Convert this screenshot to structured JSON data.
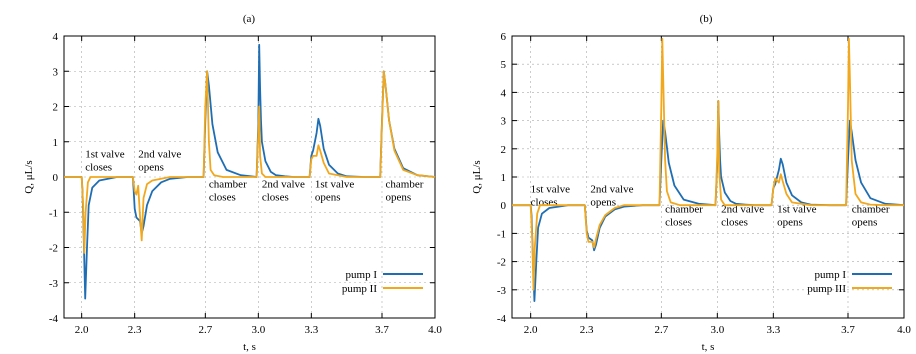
{
  "chart_data": [
    {
      "type": "line",
      "title": "(a)",
      "xlabel": "t, s",
      "ylabel": "Q, μL/s",
      "xlim": [
        1.9,
        4.0
      ],
      "ylim": [
        -4,
        4
      ],
      "xticks": [
        2.0,
        2.3,
        2.7,
        3.0,
        3.3,
        3.7,
        4.0
      ],
      "xtick_labels": [
        "2.0",
        "2.3",
        "2.7",
        "3.0",
        "3.3",
        "3.7",
        "4.0"
      ],
      "yticks": [
        -4,
        -3,
        -2,
        -1,
        0,
        1,
        2,
        3,
        4
      ],
      "ytick_labels": [
        "-4",
        "-3",
        "-2",
        "-1",
        "0",
        "1",
        "2",
        "3",
        "4"
      ],
      "grid": true,
      "legend_position": "bottom-right",
      "annotations": [
        {
          "lines": [
            "1st valve",
            "closes"
          ],
          "x": 2.02,
          "y": 0.55
        },
        {
          "lines": [
            "2nd valve",
            "opens"
          ],
          "x": 2.32,
          "y": 0.55
        },
        {
          "lines": [
            "chamber",
            "closes"
          ],
          "x": 2.72,
          "y": -0.3
        },
        {
          "lines": [
            "2nd valve",
            "closes"
          ],
          "x": 3.02,
          "y": -0.3
        },
        {
          "lines": [
            "1st valve",
            "opens"
          ],
          "x": 3.32,
          "y": -0.3
        },
        {
          "lines": [
            "chamber",
            "opens"
          ],
          "x": 3.72,
          "y": -0.3
        }
      ],
      "series": [
        {
          "name": "pump I",
          "color": "#1f6eb4",
          "x": [
            1.9,
            2.0,
            2.005,
            2.012,
            2.02,
            2.03,
            2.04,
            2.06,
            2.1,
            2.2,
            2.29,
            2.3,
            2.31,
            2.33,
            2.34,
            2.35,
            2.37,
            2.4,
            2.45,
            2.5,
            2.6,
            2.69,
            2.7,
            2.71,
            2.72,
            2.74,
            2.77,
            2.82,
            2.9,
            2.99,
            3.0,
            3.005,
            3.01,
            3.015,
            3.02,
            3.04,
            3.07,
            3.1,
            3.15,
            3.2,
            3.29,
            3.3,
            3.31,
            3.33,
            3.34,
            3.35,
            3.37,
            3.4,
            3.45,
            3.5,
            3.6,
            3.69,
            3.7,
            3.71,
            3.72,
            3.74,
            3.77,
            3.82,
            3.9,
            4.0
          ],
          "values": [
            0,
            0,
            -0.4,
            -1.8,
            -3.45,
            -2.0,
            -0.8,
            -0.3,
            -0.1,
            0,
            0,
            -0.9,
            -1.15,
            -1.25,
            -1.6,
            -1.4,
            -0.8,
            -0.4,
            -0.15,
            -0.05,
            0,
            0,
            1.6,
            3.0,
            2.6,
            1.5,
            0.7,
            0.2,
            0.05,
            0,
            1.5,
            3.75,
            2.5,
            1.6,
            1.0,
            0.45,
            0.15,
            0.05,
            0.02,
            0,
            0,
            0.6,
            0.75,
            1.25,
            1.65,
            1.45,
            0.8,
            0.35,
            0.1,
            0.02,
            0,
            0,
            1.6,
            3.0,
            2.6,
            1.6,
            0.8,
            0.25,
            0.05,
            0
          ]
        },
        {
          "name": "pump II",
          "color": "#f2a81d",
          "x": [
            1.9,
            2.0,
            2.008,
            2.015,
            2.022,
            2.035,
            2.05,
            2.1,
            2.2,
            2.29,
            2.3,
            2.31,
            2.32,
            2.33,
            2.34,
            2.35,
            2.37,
            2.4,
            2.5,
            2.69,
            2.7,
            2.71,
            2.72,
            2.73,
            2.75,
            2.8,
            2.9,
            2.99,
            3.0,
            3.005,
            3.01,
            3.02,
            3.04,
            3.1,
            3.29,
            3.3,
            3.31,
            3.33,
            3.34,
            3.35,
            3.37,
            3.4,
            3.5,
            3.69,
            3.7,
            3.71,
            3.72,
            3.74,
            3.77,
            3.82,
            3.9,
            4.0
          ],
          "values": [
            0,
            0,
            -0.8,
            -2.15,
            -1.0,
            -0.15,
            0,
            0,
            0,
            0,
            -0.4,
            -0.5,
            -0.25,
            -1.1,
            -1.8,
            -0.6,
            -0.2,
            -0.1,
            0,
            0,
            2.0,
            3.0,
            1.0,
            0.2,
            0.05,
            0,
            0,
            0,
            1.2,
            2.0,
            0.6,
            0.1,
            0,
            0,
            0,
            0.5,
            0.6,
            0.6,
            0.9,
            0.75,
            0.4,
            0.1,
            0,
            0,
            1.5,
            3.0,
            2.6,
            1.6,
            0.75,
            0.2,
            0.05,
            0
          ]
        }
      ]
    },
    {
      "type": "line",
      "title": "(b)",
      "xlabel": "t, s",
      "ylabel": "Q, μL/s",
      "xlim": [
        1.9,
        4.0
      ],
      "ylim": [
        -4,
        6
      ],
      "xticks": [
        2.0,
        2.3,
        2.7,
        3.0,
        3.3,
        3.7,
        4.0
      ],
      "xtick_labels": [
        "2.0",
        "2.3",
        "2.7",
        "3.0",
        "3.3",
        "3.7",
        "4.0"
      ],
      "yticks": [
        -4,
        -3,
        -2,
        -1,
        0,
        1,
        2,
        3,
        4,
        5,
        6
      ],
      "ytick_labels": [
        "-4",
        "-3",
        "-2",
        "-1",
        "0",
        "1",
        "2",
        "3",
        "4",
        "5",
        "6"
      ],
      "grid": true,
      "legend_position": "bottom-right",
      "annotations": [
        {
          "lines": [
            "1st valve",
            "closes"
          ],
          "x": 2.0,
          "y": 0.45
        },
        {
          "lines": [
            "2nd valve",
            "opens"
          ],
          "x": 2.32,
          "y": 0.45
        },
        {
          "lines": [
            "chamber",
            "closes"
          ],
          "x": 2.72,
          "y": -0.25
        },
        {
          "lines": [
            "2nd valve",
            "closes"
          ],
          "x": 3.02,
          "y": -0.25
        },
        {
          "lines": [
            "1st valve",
            "opens"
          ],
          "x": 3.32,
          "y": -0.25
        },
        {
          "lines": [
            "chamber",
            "opens"
          ],
          "x": 3.72,
          "y": -0.25
        }
      ],
      "series": [
        {
          "name": "pump I",
          "color": "#1f6eb4",
          "x": [
            1.9,
            2.0,
            2.005,
            2.012,
            2.02,
            2.03,
            2.04,
            2.06,
            2.1,
            2.2,
            2.29,
            2.3,
            2.31,
            2.33,
            2.34,
            2.35,
            2.37,
            2.4,
            2.45,
            2.5,
            2.6,
            2.69,
            2.7,
            2.71,
            2.72,
            2.74,
            2.77,
            2.82,
            2.9,
            2.99,
            3.0,
            3.005,
            3.01,
            3.015,
            3.02,
            3.04,
            3.07,
            3.1,
            3.15,
            3.2,
            3.29,
            3.3,
            3.31,
            3.33,
            3.34,
            3.35,
            3.37,
            3.4,
            3.45,
            3.5,
            3.6,
            3.69,
            3.7,
            3.71,
            3.72,
            3.74,
            3.77,
            3.82,
            3.9,
            4.0
          ],
          "values": [
            0,
            0,
            -0.4,
            -1.8,
            -3.4,
            -2.0,
            -0.8,
            -0.3,
            -0.1,
            0,
            0,
            -0.9,
            -1.15,
            -1.25,
            -1.6,
            -1.4,
            -0.8,
            -0.4,
            -0.15,
            -0.05,
            0,
            0,
            1.6,
            3.0,
            2.6,
            1.5,
            0.7,
            0.2,
            0.05,
            0,
            1.5,
            3.7,
            2.5,
            1.6,
            1.0,
            0.45,
            0.15,
            0.05,
            0.02,
            0,
            0,
            0.6,
            0.75,
            1.25,
            1.65,
            1.45,
            0.8,
            0.35,
            0.1,
            0.02,
            0,
            0,
            1.6,
            3.0,
            2.6,
            1.6,
            0.8,
            0.25,
            0.05,
            0
          ]
        },
        {
          "name": "pump III",
          "color": "#f2a81d",
          "x": [
            1.9,
            2.0,
            2.008,
            2.015,
            2.022,
            2.035,
            2.05,
            2.1,
            2.2,
            2.29,
            2.3,
            2.31,
            2.33,
            2.34,
            2.35,
            2.37,
            2.4,
            2.45,
            2.5,
            2.69,
            2.7,
            2.705,
            2.71,
            2.72,
            2.73,
            2.75,
            2.8,
            2.9,
            2.99,
            3.0,
            3.005,
            3.01,
            3.02,
            3.04,
            3.1,
            3.29,
            3.3,
            3.31,
            3.33,
            3.34,
            3.35,
            3.37,
            3.4,
            3.5,
            3.69,
            3.7,
            3.705,
            3.71,
            3.72,
            3.74,
            3.77,
            3.82,
            3.9,
            4.0
          ],
          "values": [
            0,
            0,
            -1.2,
            -3.0,
            -1.5,
            -0.3,
            0,
            0,
            0,
            0,
            -1.0,
            -1.3,
            -1.3,
            -1.5,
            -1.2,
            -0.7,
            -0.35,
            -0.1,
            0,
            0,
            3.5,
            5.9,
            4.5,
            1.6,
            0.5,
            0.1,
            0,
            0,
            0,
            1.8,
            3.7,
            1.2,
            0.2,
            0,
            0,
            0,
            0.6,
            0.95,
            0.8,
            1.1,
            0.85,
            0.4,
            0.1,
            0,
            0,
            3.5,
            5.9,
            4.5,
            1.6,
            0.4,
            0.1,
            0.02,
            0,
            0
          ]
        }
      ]
    }
  ]
}
